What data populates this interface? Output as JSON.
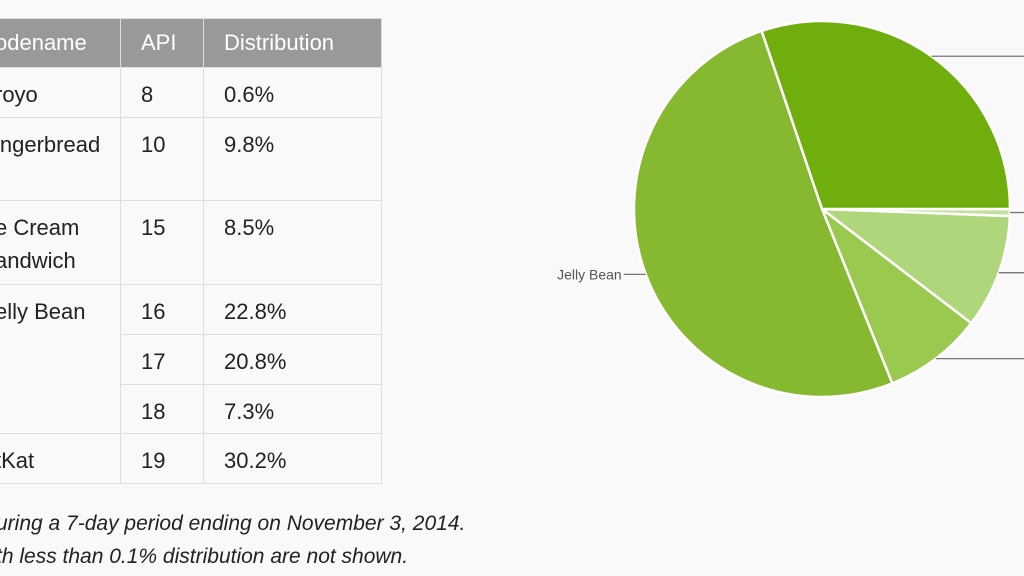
{
  "table": {
    "headers": [
      "odename",
      "API",
      "Distribution"
    ],
    "rows": [
      {
        "codename": "royo",
        "api": "8",
        "dist": "0.6%"
      },
      {
        "codename": "ingerbread",
        "api": "10",
        "dist": "9.8%"
      },
      {
        "codename": "e Cream",
        "codename2": "andwich",
        "api": "15",
        "dist": "8.5%"
      },
      {
        "codename": "elly Bean",
        "api": "16",
        "dist": "22.8%"
      },
      {
        "api": "17",
        "dist": "20.8%"
      },
      {
        "api": "18",
        "dist": "7.3%"
      },
      {
        "codename": "tKat",
        "api": "19",
        "dist": "30.2%"
      }
    ]
  },
  "notes": [
    "uring a 7-day period ending on November 3, 2014.",
    "th less than 0.1% distribution are not shown."
  ],
  "chart_data": {
    "type": "pie",
    "slices": [
      {
        "label": "",
        "value": 0.6,
        "color": "#c4e09c"
      },
      {
        "label": "",
        "value": 9.8,
        "color": "#b0d67c"
      },
      {
        "label": "",
        "value": 8.5,
        "color": "#9bc84f"
      },
      {
        "label": "Jelly Bean",
        "value": 50.9,
        "color": "#86b92f"
      },
      {
        "label": "",
        "value": 30.2,
        "color": "#6fae0c"
      }
    ]
  }
}
